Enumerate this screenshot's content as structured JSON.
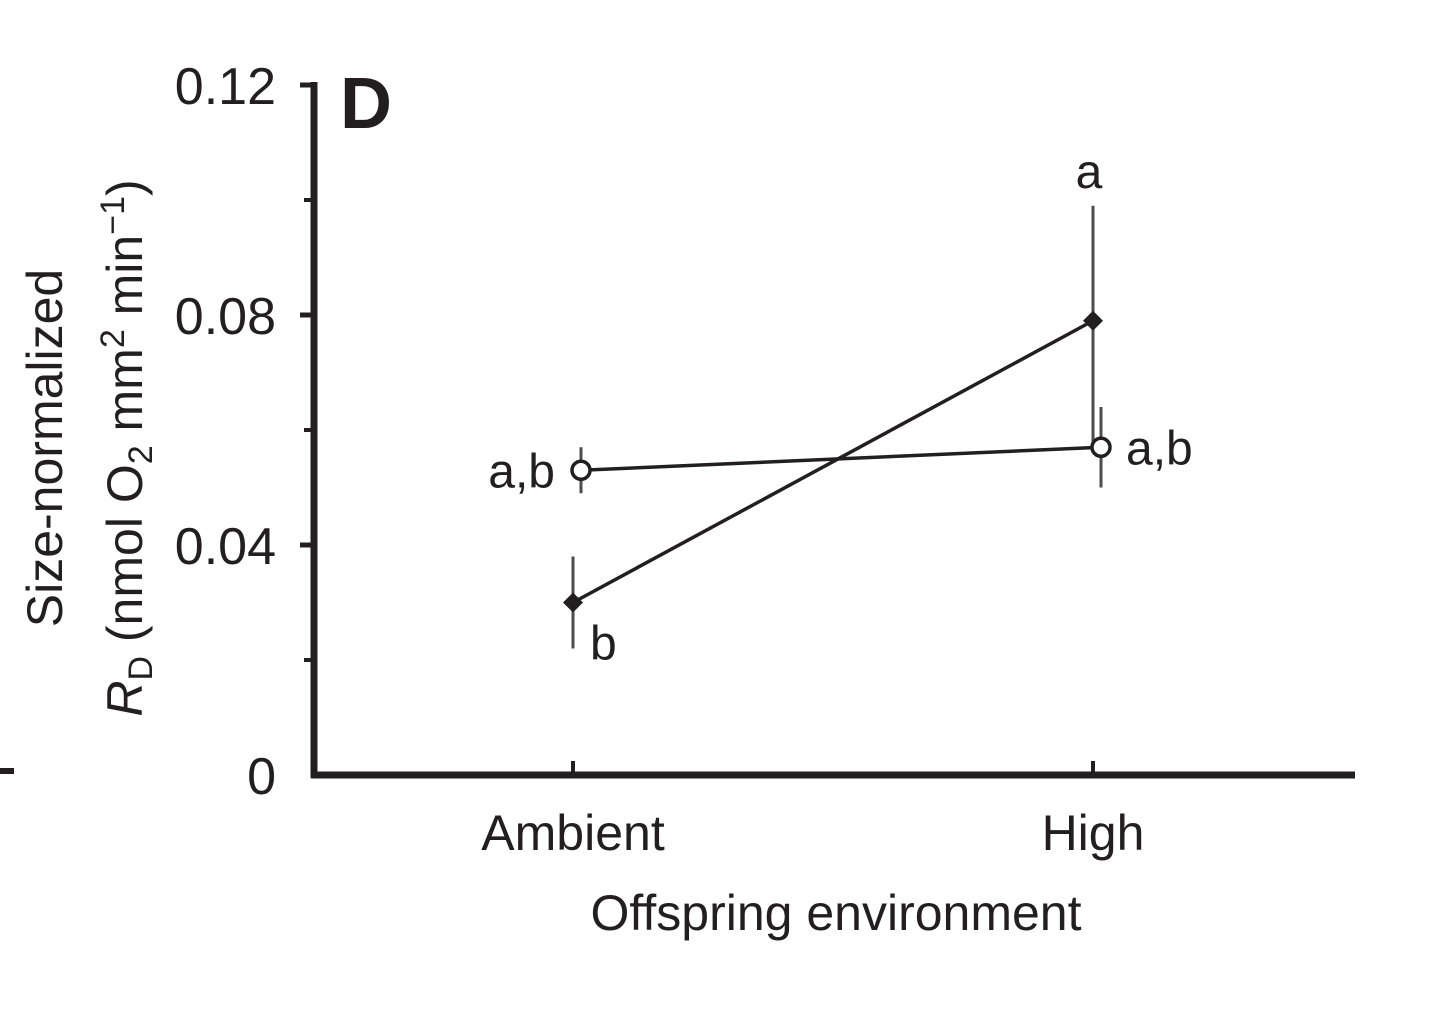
{
  "chart_data": {
    "type": "line",
    "panel_label": "D",
    "categories": [
      "Ambient",
      "High"
    ],
    "xlabel": "Offspring environment",
    "ylabel": {
      "line1": "Size-normalized",
      "symbol": "R",
      "symbol_sub": "D",
      "unit_open": " (nmol O",
      "o2_sub": "2",
      "unit_mm": " mm",
      "mm_sup": "2",
      "unit_min": " min",
      "min_sup": "−1",
      "unit_close": ")"
    },
    "ylim": [
      0,
      0.12
    ],
    "yticks": [
      "0",
      "0.04",
      "0.08",
      "0.12"
    ],
    "ytick_values": [
      0,
      0.04,
      0.08,
      0.12
    ],
    "yminor": [
      0.02,
      0.06,
      0.1
    ],
    "grid": false,
    "series": [
      {
        "marker": "filled-diamond",
        "values": [
          0.03,
          0.079
        ],
        "err_low": [
          0.022,
          0.058
        ],
        "err_high": [
          0.038,
          0.099
        ],
        "labels": [
          "b",
          "a"
        ]
      },
      {
        "marker": "open-circle",
        "values": [
          0.053,
          0.057
        ],
        "err_low": [
          0.049,
          0.05
        ],
        "err_high": [
          0.057,
          0.064
        ],
        "labels": [
          "a,b",
          "a,b"
        ]
      }
    ]
  }
}
